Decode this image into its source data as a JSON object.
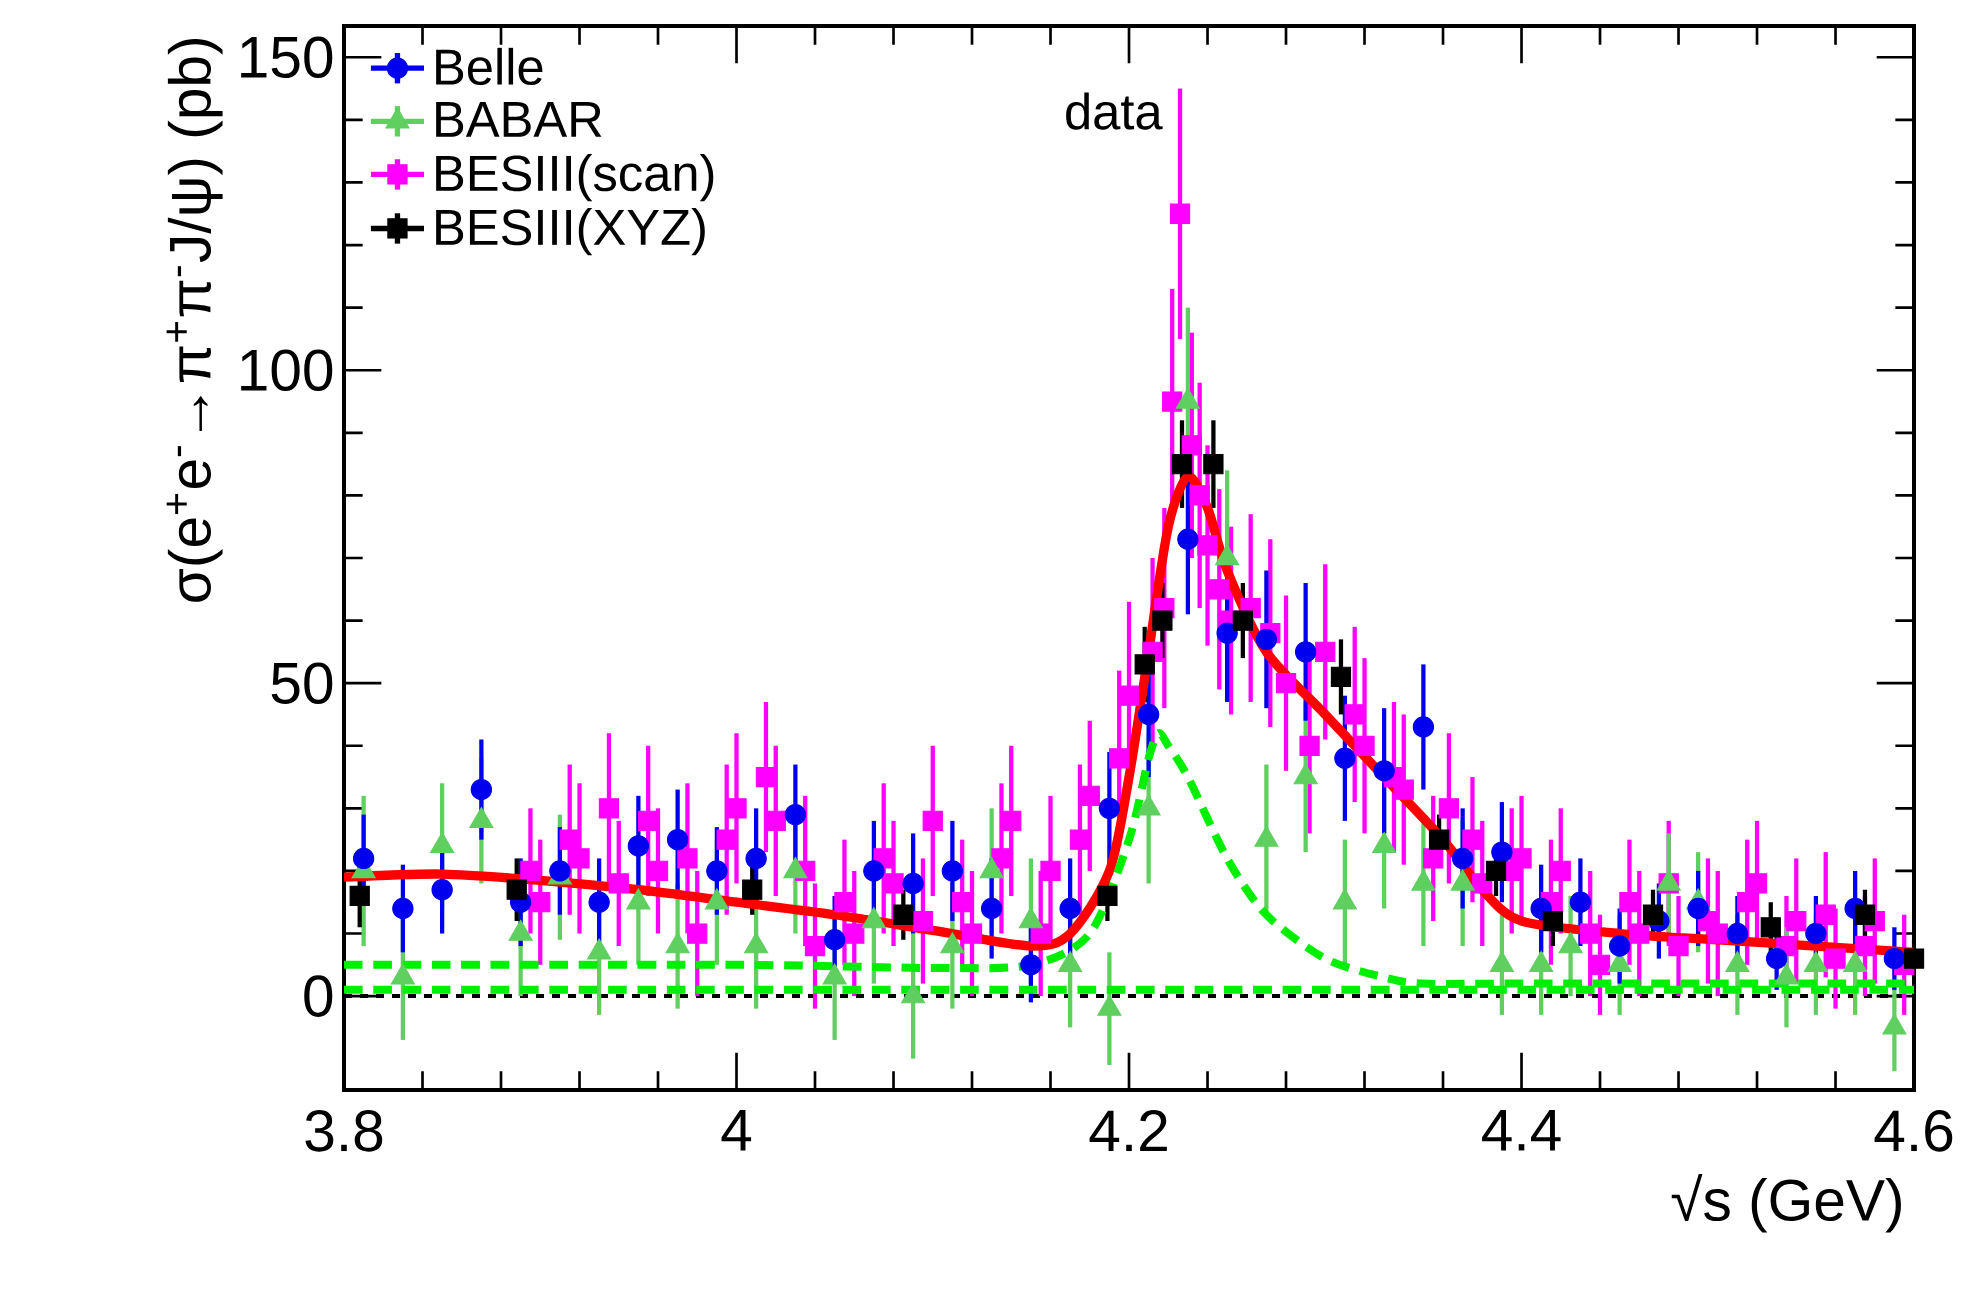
{
  "chart_data": {
    "type": "scatter",
    "xlabel": "√s (GeV)",
    "ylabel": "σ(e$^{+}$e$^{-}$→π$^{+}$π$^{-}$J/ψ) (pb)",
    "xlim": [
      3.8,
      4.6
    ],
    "ylim": [
      -15,
      155
    ],
    "xticks": [
      3.8,
      4,
      4.2,
      4.4,
      4.6
    ],
    "yticks": [
      0,
      50,
      100,
      150
    ],
    "grid": false,
    "legend": "top left",
    "annotations": [
      "data"
    ],
    "ref_lines": [
      {
        "axis": "y",
        "value": 0,
        "color": "#000000",
        "line_style": "dotted"
      }
    ],
    "series": [
      {
        "name": "Belle",
        "color": "#0000ee",
        "marker": "circle",
        "x": [
          3.81,
          3.83,
          3.85,
          3.87,
          3.89,
          3.91,
          3.93,
          3.95,
          3.97,
          3.99,
          4.01,
          4.03,
          4.05,
          4.07,
          4.09,
          4.11,
          4.13,
          4.15,
          4.17,
          4.19,
          4.21,
          4.23,
          4.25,
          4.27,
          4.29,
          4.31,
          4.33,
          4.35,
          4.37,
          4.39,
          4.41,
          4.43,
          4.45,
          4.47,
          4.49,
          4.51,
          4.53,
          4.55,
          4.57,
          4.59
        ],
        "values": [
          22,
          14,
          17,
          33,
          15,
          20,
          15,
          24,
          25,
          20,
          22,
          29,
          9,
          20,
          18,
          20,
          14,
          5,
          14,
          30,
          45,
          73,
          58,
          57,
          55,
          38,
          36,
          43,
          22,
          23,
          14,
          15,
          8,
          12,
          14,
          10,
          6,
          10,
          14,
          6
        ],
        "errors": [
          7,
          7,
          7,
          8,
          7,
          7,
          7,
          8,
          8,
          7,
          8,
          8,
          7,
          8,
          8,
          8,
          8,
          6,
          8,
          9,
          10,
          12,
          11,
          11,
          11,
          10,
          10,
          10,
          8,
          8,
          7,
          7,
          6,
          6,
          6,
          6,
          5,
          6,
          6,
          5
        ]
      },
      {
        "name": "BABAR",
        "color": "#5fcf5f",
        "marker": "triangle",
        "x": [
          3.81,
          3.83,
          3.85,
          3.87,
          3.89,
          3.91,
          3.93,
          3.95,
          3.97,
          3.99,
          4.01,
          4.03,
          4.05,
          4.07,
          4.09,
          4.11,
          4.13,
          4.15,
          4.17,
          4.19,
          4.21,
          4.23,
          4.25,
          4.27,
          4.29,
          4.31,
          4.33,
          4.35,
          4.37,
          4.39,
          4.41,
          4.425,
          4.45,
          4.475,
          4.49,
          4.51,
          4.535,
          4.55,
          4.57,
          4.59
        ],
        "values": [
          20,
          3,
          24,
          28,
          10,
          19,
          7,
          15,
          8,
          15,
          8,
          20,
          3,
          12,
          0,
          8,
          20,
          12,
          5,
          -2,
          30,
          95,
          70,
          25,
          35,
          15,
          24,
          18,
          18,
          5,
          5,
          8,
          5,
          18,
          15,
          5,
          3,
          5,
          5,
          -5
        ],
        "errors": [
          12,
          10,
          10,
          10,
          10,
          10,
          10,
          10,
          10,
          10,
          10,
          10,
          10,
          10,
          10,
          10,
          10,
          10,
          10,
          9,
          12,
          15,
          14,
          12,
          12,
          10,
          10,
          10,
          10,
          8,
          8,
          8,
          8,
          8,
          8,
          8,
          8,
          8,
          8,
          7
        ]
      },
      {
        "name": "BESIII(scan)",
        "color": "#ff00ff",
        "marker": "square",
        "x": [
          3.895,
          3.9,
          3.915,
          3.92,
          3.935,
          3.94,
          3.955,
          3.96,
          3.975,
          3.98,
          3.995,
          4.0,
          4.015,
          4.02,
          4.035,
          4.04,
          4.055,
          4.06,
          4.075,
          4.08,
          4.095,
          4.1,
          4.115,
          4.12,
          4.135,
          4.14,
          4.155,
          4.16,
          4.175,
          4.18,
          4.195,
          4.2,
          4.212,
          4.218,
          4.222,
          4.226,
          4.232,
          4.236,
          4.24,
          4.246,
          4.252,
          4.262,
          4.272,
          4.28,
          4.292,
          4.3,
          4.315,
          4.32,
          4.335,
          4.34,
          4.355,
          4.363,
          4.375,
          4.38,
          4.395,
          4.4,
          4.415,
          4.42,
          4.435,
          4.44,
          4.455,
          4.46,
          4.475,
          4.48,
          4.495,
          4.5,
          4.515,
          4.52,
          4.535,
          4.54,
          4.555,
          4.56,
          4.575,
          4.58,
          4.595
        ],
        "values": [
          20,
          15,
          25,
          22,
          30,
          18,
          28,
          20,
          22,
          10,
          25,
          30,
          35,
          28,
          20,
          8,
          15,
          10,
          22,
          18,
          12,
          28,
          15,
          10,
          22,
          28,
          10,
          20,
          25,
          32,
          38,
          48,
          55,
          62,
          95,
          125,
          88,
          80,
          72,
          65,
          60,
          62,
          58,
          50,
          40,
          55,
          45,
          40,
          35,
          33,
          22,
          30,
          25,
          18,
          20,
          22,
          15,
          20,
          10,
          5,
          15,
          10,
          18,
          8,
          12,
          10,
          15,
          18,
          8,
          12,
          13,
          6,
          8,
          12,
          5
        ],
        "errors": [
          10,
          10,
          12,
          12,
          12,
          10,
          12,
          10,
          12,
          10,
          12,
          12,
          12,
          12,
          12,
          10,
          10,
          10,
          12,
          10,
          10,
          12,
          10,
          10,
          12,
          12,
          10,
          12,
          12,
          12,
          14,
          15,
          15,
          16,
          18,
          20,
          18,
          18,
          16,
          16,
          15,
          15,
          15,
          14,
          14,
          14,
          14,
          14,
          12,
          12,
          10,
          12,
          10,
          10,
          10,
          10,
          10,
          10,
          10,
          8,
          10,
          10,
          10,
          8,
          10,
          10,
          10,
          10,
          8,
          10,
          10,
          8,
          8,
          10,
          8
        ]
      },
      {
        "name": "BESIII(XYZ)",
        "color": "#000000",
        "marker": "square",
        "x": [
          3.808,
          3.888,
          4.008,
          4.085,
          4.189,
          4.208,
          4.217,
          4.227,
          4.243,
          4.258,
          4.308,
          4.358,
          4.387,
          4.416,
          4.467,
          4.527,
          4.575,
          4.6
        ],
        "values": [
          16,
          17,
          17,
          13,
          16,
          53,
          60,
          85,
          85,
          60,
          51,
          25,
          20,
          12,
          13,
          11,
          13,
          6
        ],
        "errors": [
          5,
          5,
          4,
          4,
          4,
          6,
          6,
          7,
          7,
          6,
          6,
          4,
          4,
          4,
          4,
          4,
          4,
          3
        ]
      },
      {
        "type": "line",
        "color": "#ff0000",
        "line_style": "solid",
        "x": [
          3.8,
          3.85,
          3.9,
          3.95,
          4.0,
          4.05,
          4.1,
          4.15,
          4.17,
          4.19,
          4.2,
          4.21,
          4.22,
          4.23,
          4.24,
          4.25,
          4.27,
          4.3,
          4.33,
          4.36,
          4.38,
          4.4,
          4.45,
          4.5,
          4.55,
          4.6
        ],
        "values": [
          19,
          19.5,
          18.5,
          17,
          15,
          13,
          10.5,
          8,
          10,
          20,
          35,
          55,
          75,
          83,
          78,
          68,
          55,
          45,
          35,
          25,
          17,
          12,
          10,
          9,
          8,
          7
        ]
      },
      {
        "type": "line",
        "color": "#00ee00",
        "line_style": "dashed",
        "x": [
          3.8,
          4.0,
          4.1,
          4.15,
          4.18,
          4.2,
          4.21,
          4.215,
          4.22,
          4.23,
          4.25,
          4.27,
          4.3,
          4.33,
          4.35,
          4.4,
          4.6
        ],
        "values": [
          5,
          5,
          4.5,
          5,
          10,
          25,
          38,
          42,
          40,
          35,
          22,
          13,
          6,
          3,
          2,
          2,
          2
        ]
      },
      {
        "type": "line",
        "color": "#00ee00",
        "line_style": "dashed",
        "x": [
          3.8,
          4.0,
          4.2,
          4.4,
          4.6
        ],
        "values": [
          1,
          1,
          1,
          1,
          1
        ]
      }
    ]
  }
}
